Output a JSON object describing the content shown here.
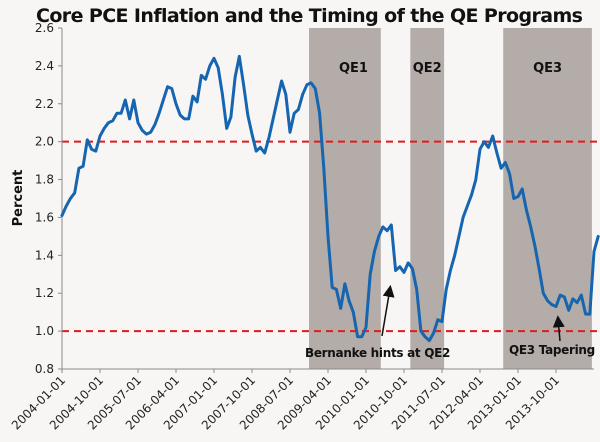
{
  "chart_data": {
    "type": "line",
    "title": "Core PCE Inflation and the Timing of the QE Programs",
    "xlabel": "",
    "ylabel": "Percent",
    "ylim": [
      0.8,
      2.6
    ],
    "yticks": [
      "0.8",
      "1.0",
      "1.2",
      "1.4",
      "1.6",
      "1.8",
      "2.0",
      "2.2",
      "2.4",
      "2.6"
    ],
    "x_start": "2004-01",
    "x_frequency": "monthly",
    "xlim_months": [
      0,
      126
    ],
    "xtick_labels": [
      "2004-01-01",
      "2004-10-01",
      "2005-07-01",
      "2006-04-01",
      "2007-01-01",
      "2007-10-01",
      "2008-07-01",
      "2009-04-01",
      "2010-01-01",
      "2010-10-01",
      "2011-07-01",
      "2012-04-01",
      "2013-01-01",
      "2013-10-01"
    ],
    "grid": false,
    "line_color": "#1565b0",
    "reference_lines": [
      {
        "value": 2.0,
        "color": "#e01b1b",
        "style": "dashed"
      },
      {
        "value": 1.0,
        "color": "#e01b1b",
        "style": "dashed"
      }
    ],
    "shaded_periods": [
      {
        "label": "QE1",
        "start_month": 58.5,
        "end_month": 75.5,
        "color": "#b3aca8"
      },
      {
        "label": "QE2",
        "start_month": 82.5,
        "end_month": 90.5,
        "color": "#b3aca8"
      },
      {
        "label": "QE3",
        "start_month": 104.5,
        "end_month": 125.5,
        "color": "#b3aca8"
      }
    ],
    "annotations": [
      {
        "text": "Bernanke hints at QE2",
        "arrow_to_month": 77,
        "arrow_to_value": 1.26
      },
      {
        "text": "QE3 Tapering",
        "arrow_to_month": 117,
        "arrow_to_value": 1.11
      }
    ],
    "series": [
      {
        "name": "Core PCE Inflation",
        "values": [
          1.61,
          1.66,
          1.7,
          1.73,
          1.86,
          1.87,
          2.01,
          1.96,
          1.95,
          2.03,
          2.07,
          2.1,
          2.11,
          2.15,
          2.15,
          2.22,
          2.12,
          2.22,
          2.1,
          2.06,
          2.04,
          2.05,
          2.09,
          2.15,
          2.22,
          2.29,
          2.28,
          2.2,
          2.14,
          2.12,
          2.12,
          2.24,
          2.21,
          2.35,
          2.33,
          2.4,
          2.44,
          2.39,
          2.25,
          2.07,
          2.13,
          2.34,
          2.45,
          2.3,
          2.14,
          2.04,
          1.95,
          1.97,
          1.94,
          2.02,
          2.12,
          2.22,
          2.32,
          2.25,
          2.05,
          2.15,
          2.17,
          2.25,
          2.3,
          2.31,
          2.28,
          2.15,
          1.86,
          1.5,
          1.23,
          1.22,
          1.12,
          1.25,
          1.16,
          1.1,
          0.97,
          0.97,
          1.02,
          1.3,
          1.42,
          1.5,
          1.55,
          1.53,
          1.56,
          1.32,
          1.34,
          1.31,
          1.36,
          1.33,
          1.22,
          1.0,
          0.97,
          0.95,
          0.99,
          1.06,
          1.05,
          1.22,
          1.32,
          1.4,
          1.5,
          1.6,
          1.66,
          1.72,
          1.8,
          1.96,
          2.0,
          1.97,
          2.03,
          1.94,
          1.86,
          1.89,
          1.83,
          1.7,
          1.71,
          1.75,
          1.64,
          1.55,
          1.45,
          1.33,
          1.2,
          1.16,
          1.14,
          1.13,
          1.19,
          1.18,
          1.11,
          1.17,
          1.15,
          1.19,
          1.09,
          1.09,
          1.42,
          1.5
        ]
      }
    ]
  }
}
